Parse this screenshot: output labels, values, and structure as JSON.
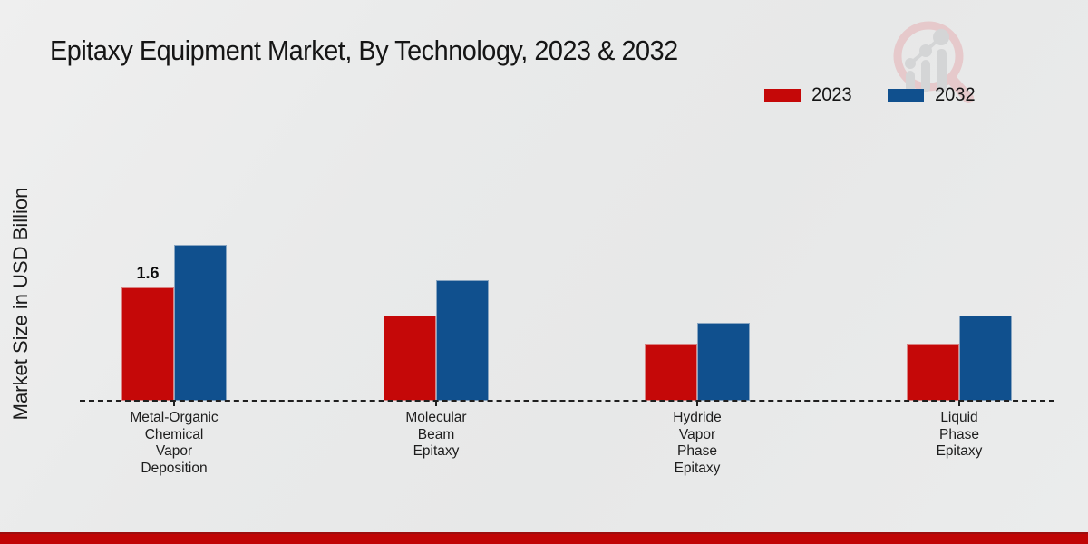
{
  "header": {
    "title": "Epitaxy Equipment Market, By Technology, 2023 & 2032"
  },
  "y_axis": {
    "label": "Market Size in USD Billion"
  },
  "legend": {
    "items": [
      {
        "label": "2023",
        "color": "#c50808"
      },
      {
        "label": "2032",
        "color": "#10508e"
      }
    ]
  },
  "watermark": {
    "icon": "market-research-magnifier-bar-chart-logo",
    "ring_color": "#e6c6c8",
    "glyph_color": "#d2d3d5"
  },
  "chart_data": {
    "type": "bar",
    "title": "Epitaxy Equipment Market, By Technology, 2023 & 2032",
    "xlabel": "",
    "ylabel": "Market Size in USD Billion",
    "categories": [
      "Metal-Organic Chemical Vapor Deposition",
      "Molecular Beam Epitaxy",
      "Hydride Vapor Phase Epitaxy",
      "Liquid Phase Epitaxy"
    ],
    "category_label_lines": [
      [
        "Metal-Organic",
        "Chemical",
        "Vapor",
        "Deposition"
      ],
      [
        "Molecular",
        "Beam",
        "Epitaxy"
      ],
      [
        "Hydride",
        "Vapor",
        "Phase",
        "Epitaxy"
      ],
      [
        "Liquid",
        "Phase",
        "Epitaxy"
      ]
    ],
    "series": [
      {
        "name": "2023",
        "color": "#c50808",
        "values": [
          1.6,
          1.2,
          0.8,
          0.8
        ]
      },
      {
        "name": "2032",
        "color": "#10508e",
        "values": [
          2.2,
          1.7,
          1.1,
          1.2
        ]
      }
    ],
    "bar_value_labels": [
      {
        "series_index": 0,
        "category_index": 0,
        "text": "1.6"
      }
    ],
    "ylim": [
      0,
      2.5
    ],
    "grid": false,
    "axis_line_style": "dashed-baseline-only",
    "legend_position": "top-right"
  },
  "footer": {
    "strip_color": "#c00505"
  }
}
